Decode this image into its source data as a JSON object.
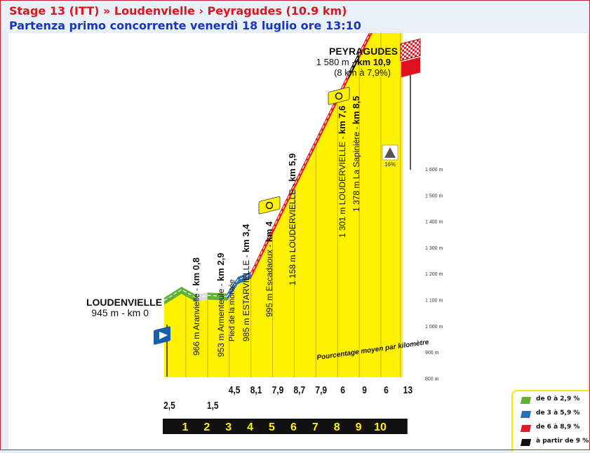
{
  "header": {
    "title": "Stage 13 (ITT) » Loudenvielle › Peyragudes (10.9 km)",
    "subtitle": "Partenza primo concorrente venerdì 18 luglio ore 13:10"
  },
  "chart_data": {
    "type": "area",
    "title": "",
    "xlabel": "",
    "ylabel": "",
    "annotation": "Pourcentage moyen par kilomètre",
    "elevation_ticks": [
      "1 600 m",
      "1 500 m",
      "1 400 m",
      "1 300 m",
      "1 200 m",
      "1 100 m",
      "1 000 m",
      "900 m",
      "800 m"
    ],
    "ylim": [
      800,
      1600
    ],
    "km_markers": [
      "1",
      "2",
      "3",
      "4",
      "5",
      "6",
      "7",
      "8",
      "9",
      "10"
    ],
    "gradients_per_km": [
      "2,5",
      "",
      "1,5",
      "4,5",
      "8,1",
      "7,9",
      "8,7",
      "7,9",
      "6",
      "9",
      "6",
      "13"
    ],
    "profile": [
      {
        "km": 0,
        "alt": 945
      },
      {
        "km": 0.8,
        "alt": 966
      },
      {
        "km": 1.5,
        "alt": 950
      },
      {
        "km": 2.0,
        "alt": 955
      },
      {
        "km": 2.9,
        "alt": 953
      },
      {
        "km": 3.4,
        "alt": 985
      },
      {
        "km": 4.0,
        "alt": 995
      },
      {
        "km": 5.9,
        "alt": 1158
      },
      {
        "km": 7.6,
        "alt": 1301
      },
      {
        "km": 8.5,
        "alt": 1378
      },
      {
        "km": 10.0,
        "alt": 1500
      },
      {
        "km": 10.9,
        "alt": 1580
      }
    ],
    "places": {
      "start": {
        "name": "LOUDENVIELLE",
        "info": "945 m - km 0"
      },
      "finish": {
        "name": "PEYRAGUDES",
        "alt": "1 580 m - ",
        "km": "km 10,9",
        "climb": "(8 km à 7,9%)"
      },
      "finish_flag": "1",
      "max_gradient": "16%",
      "labels": [
        {
          "text": "966 m Aranvielle - ",
          "bold": "km 0,8"
        },
        {
          "text": "953 m Armenteule - ",
          "bold": "km 2,9",
          "extra": "Pied de la montée"
        },
        {
          "text": "985 m ESTARVIELLE - ",
          "bold": "km 3,4"
        },
        {
          "text": "995 m Escadaoux - ",
          "bold": "km 4"
        },
        {
          "text": "1 158 m LOUDERVIELLE - ",
          "bold": "km 5,9"
        },
        {
          "text": "1 301 m LOUDERVIELLE - ",
          "bold": "km 7,6"
        },
        {
          "text": "1 378 m La Sapinière - ",
          "bold": "km 8,5"
        }
      ]
    },
    "colors": {
      "green": "#5fb233",
      "blue": "#2c6fb5",
      "red": "#e31b23",
      "black": "#111111",
      "yellow": "#fff200",
      "flag_red": "#e2101c",
      "flag_blue": "#1a5ea8"
    }
  },
  "legend": {
    "items": [
      {
        "label": "de 0 à 2,9 %",
        "color": "#5fb233"
      },
      {
        "label": "de 3 à 5,9 %",
        "color": "#2c6fb5"
      },
      {
        "label": "de 6 à 8,9 %",
        "color": "#e31b23"
      },
      {
        "label": "à partir de 9 %",
        "color": "#111111"
      }
    ]
  }
}
